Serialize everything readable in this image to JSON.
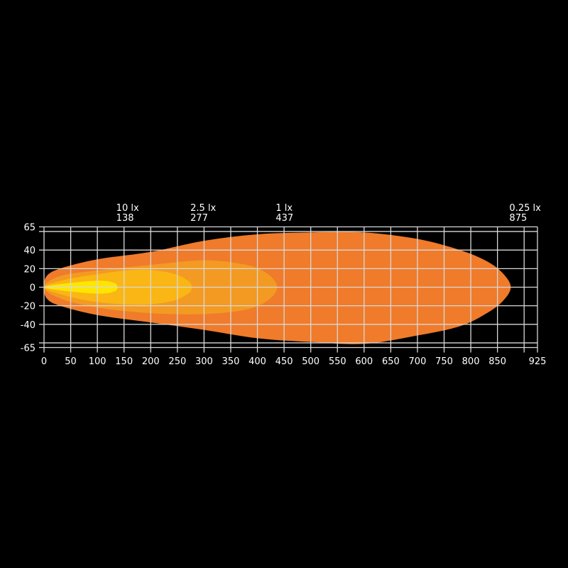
{
  "chart_data": {
    "type": "area",
    "title": "",
    "xlabel": "",
    "ylabel": "",
    "xlim": [
      0,
      925
    ],
    "ylim": [
      -65,
      65
    ],
    "x_ticks": [
      0,
      50,
      100,
      150,
      200,
      250,
      300,
      350,
      400,
      450,
      500,
      550,
      600,
      650,
      700,
      750,
      800,
      850,
      925
    ],
    "y_ticks": [
      65,
      40,
      20,
      0,
      -20,
      -40,
      -65
    ],
    "grid": true,
    "series": [
      {
        "name": "0.25 lx",
        "reach": "875",
        "color": "#EF7B2B",
        "upper": [
          [
            0,
            0
          ],
          [
            5,
            12
          ],
          [
            30,
            20
          ],
          [
            100,
            30
          ],
          [
            200,
            38
          ],
          [
            300,
            50
          ],
          [
            400,
            57
          ],
          [
            500,
            59
          ],
          [
            600,
            59
          ],
          [
            700,
            52
          ],
          [
            780,
            40
          ],
          [
            830,
            28
          ],
          [
            860,
            15
          ],
          [
            875,
            0
          ]
        ],
        "lower": [
          [
            860,
            -15
          ],
          [
            830,
            -28
          ],
          [
            780,
            -42
          ],
          [
            700,
            -52
          ],
          [
            600,
            -61
          ],
          [
            500,
            -59
          ],
          [
            400,
            -55
          ],
          [
            300,
            -46
          ],
          [
            200,
            -38
          ],
          [
            100,
            -30
          ],
          [
            30,
            -20
          ],
          [
            5,
            -12
          ]
        ]
      },
      {
        "name": "1 lx",
        "reach": "437",
        "color": "#F39A22",
        "upper": [
          [
            0,
            0
          ],
          [
            30,
            12
          ],
          [
            100,
            18
          ],
          [
            200,
            24
          ],
          [
            300,
            29
          ],
          [
            380,
            24
          ],
          [
            420,
            14
          ],
          [
            437,
            0
          ]
        ],
        "lower": [
          [
            420,
            -14
          ],
          [
            380,
            -24
          ],
          [
            300,
            -29
          ],
          [
            200,
            -28
          ],
          [
            100,
            -22
          ],
          [
            30,
            -12
          ]
        ]
      },
      {
        "name": "2.5 lx",
        "reach": "277",
        "color": "#FAB614",
        "upper": [
          [
            0,
            0
          ],
          [
            40,
            8
          ],
          [
            100,
            14
          ],
          [
            180,
            19
          ],
          [
            240,
            15
          ],
          [
            270,
            7
          ],
          [
            277,
            0
          ]
        ],
        "lower": [
          [
            270,
            -7
          ],
          [
            240,
            -15
          ],
          [
            180,
            -19
          ],
          [
            100,
            -16
          ],
          [
            40,
            -9
          ]
        ]
      },
      {
        "name": "10 lx",
        "reach": "138",
        "color": "#FFE600",
        "upper": [
          [
            0,
            0
          ],
          [
            40,
            4
          ],
          [
            100,
            7
          ],
          [
            130,
            5
          ],
          [
            138,
            0
          ]
        ],
        "lower": [
          [
            130,
            -5
          ],
          [
            100,
            -7
          ],
          [
            40,
            -4
          ]
        ]
      }
    ]
  }
}
